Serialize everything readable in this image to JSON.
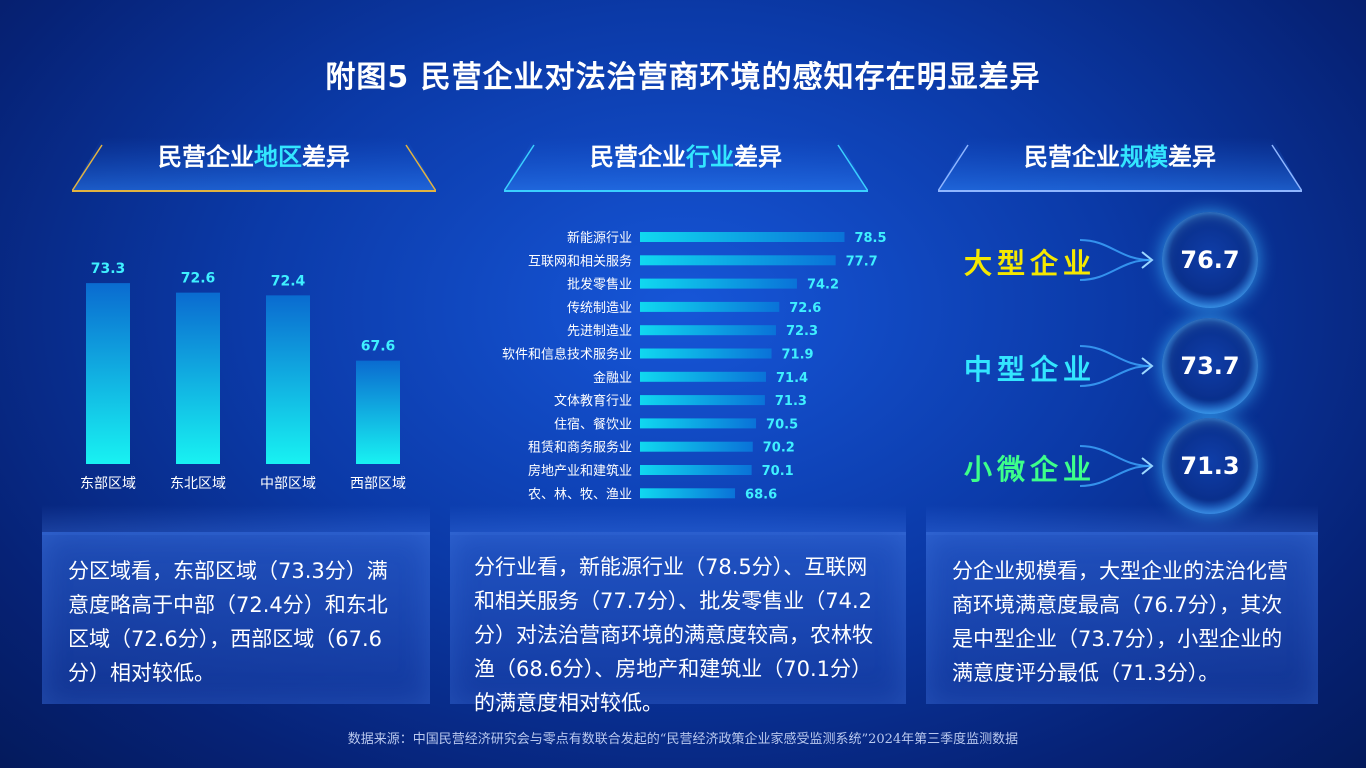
{
  "title": "附图5  民营企业对法治营商环境的感知存在明显差异",
  "sections": {
    "region": {
      "prefix": "民营企业",
      "highlight": "地区",
      "suffix": "差异"
    },
    "industry": {
      "prefix": "民营企业",
      "highlight": "行业",
      "suffix": "差异"
    },
    "size": {
      "prefix": "民营企业",
      "highlight": "规模",
      "suffix": "差异"
    }
  },
  "chart_data": [
    {
      "type": "bar",
      "categories": [
        "东部区域",
        "东北区域",
        "中部区域",
        "西部区域"
      ],
      "values": [
        73.3,
        72.6,
        72.4,
        67.6
      ],
      "ylim": [
        60,
        75
      ]
    },
    {
      "type": "bar",
      "orientation": "horizontal",
      "categories": [
        "新能源行业",
        "互联网和相关服务",
        "批发零售业",
        "传统制造业",
        "先进制造业",
        "软件和信息技术服务业",
        "金融业",
        "文体教育行业",
        "住宿、餐饮业",
        "租赁和商务服务业",
        "房地产业和建筑业",
        "农、林、牧、渔业"
      ],
      "values": [
        78.5,
        77.7,
        74.2,
        72.6,
        72.3,
        71.9,
        71.4,
        71.3,
        70.5,
        70.2,
        70.1,
        68.6
      ],
      "xlim": [
        60,
        79
      ]
    },
    {
      "type": "table",
      "categories": [
        "大型企业",
        "中型企业",
        "小微企业"
      ],
      "values": [
        "76.7",
        "73.7",
        "71.3"
      ]
    }
  ],
  "size_colors": [
    "#f5e800",
    "#33e6ff",
    "#3dff8a"
  ],
  "descriptions": {
    "region": "分区域看，东部区域（73.3分）满意度略高于中部（72.4分）和东北区域（72.6分），西部区域（67.6分）相对较低。",
    "industry": "分行业看，新能源行业（78.5分）、互联网和相关服务（77.7分）、批发零售业（74.2分）对法治营商环境的满意度较高，农林牧渔（68.6分）、房地产和建筑业（70.1分）的满意度相对较低。",
    "size": "分企业规模看，大型企业的法治化营商环境满意度最高（76.7分），其次是中型企业（73.7分），小型企业的满意度评分最低（71.3分）。"
  },
  "footer": "数据来源：中国民营经济研究会与零点有数联合发起的“民营经济政策企业家感受监测系统”2024年第三季度监测数据"
}
